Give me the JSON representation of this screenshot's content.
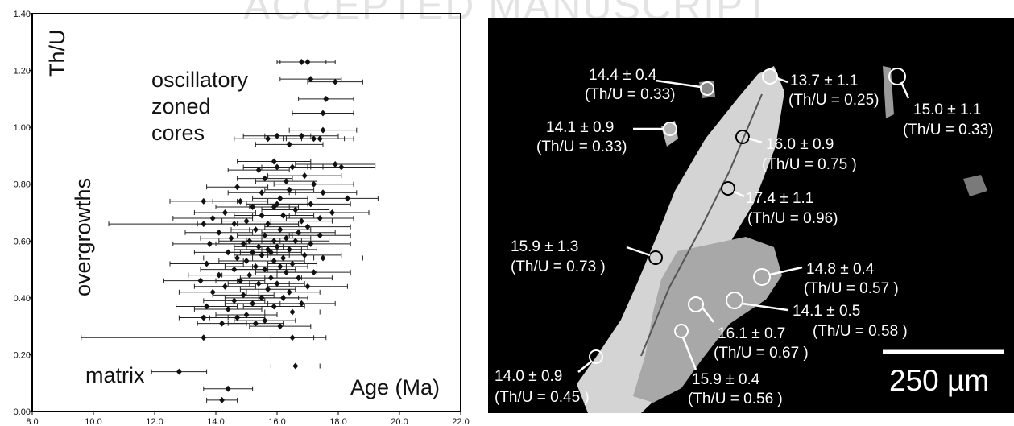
{
  "header": {
    "watermark": "ACCEPTED MANUSCRIPT"
  },
  "chart_data": {
    "type": "scatter",
    "title": "",
    "xlabel": "Age (Ma)",
    "ylabel": "Th/U",
    "xlim": [
      8.0,
      22.0
    ],
    "ylim": [
      0.0,
      1.4
    ],
    "xticks": [
      "8.0",
      "10.0",
      "12.0",
      "14.0",
      "16.0",
      "18.0",
      "20.0",
      "22.0"
    ],
    "yticks": [
      "0.00",
      "0.20",
      "0.40",
      "0.60",
      "0.80",
      "1.00",
      "1.20",
      "1.40"
    ],
    "grid": false,
    "annotations": [
      "oscillatory",
      "zoned",
      "cores",
      "overgrowths",
      "matrix"
    ],
    "points": [
      {
        "x": 16.8,
        "y": 1.23,
        "err": 0.8
      },
      {
        "x": 17.0,
        "y": 1.23,
        "err": 0.9
      },
      {
        "x": 17.1,
        "y": 1.17,
        "err": 1.0
      },
      {
        "x": 17.9,
        "y": 1.16,
        "err": 0.9
      },
      {
        "x": 17.6,
        "y": 1.1,
        "err": 0.9
      },
      {
        "x": 17.5,
        "y": 1.05,
        "err": 1.0
      },
      {
        "x": 17.5,
        "y": 0.99,
        "err": 1.1
      },
      {
        "x": 16.0,
        "y": 0.97,
        "err": 1.1
      },
      {
        "x": 16.8,
        "y": 0.97,
        "err": 1.2
      },
      {
        "x": 17.2,
        "y": 0.96,
        "err": 1.0
      },
      {
        "x": 15.7,
        "y": 0.96,
        "err": 1.1
      },
      {
        "x": 17.4,
        "y": 0.96,
        "err": 1.1
      },
      {
        "x": 16.4,
        "y": 0.94,
        "err": 1.1
      },
      {
        "x": 15.9,
        "y": 0.88,
        "err": 1.2
      },
      {
        "x": 17.9,
        "y": 0.87,
        "err": 1.3
      },
      {
        "x": 16.0,
        "y": 0.86,
        "err": 1.1
      },
      {
        "x": 16.5,
        "y": 0.86,
        "err": 1.0
      },
      {
        "x": 18.1,
        "y": 0.86,
        "err": 1.1
      },
      {
        "x": 15.4,
        "y": 0.85,
        "err": 1.0
      },
      {
        "x": 16.9,
        "y": 0.83,
        "err": 1.2
      },
      {
        "x": 15.6,
        "y": 0.82,
        "err": 0.9
      },
      {
        "x": 16.3,
        "y": 0.81,
        "err": 1.0
      },
      {
        "x": 17.2,
        "y": 0.8,
        "err": 1.3
      },
      {
        "x": 14.7,
        "y": 0.79,
        "err": 1.0
      },
      {
        "x": 16.4,
        "y": 0.78,
        "err": 0.8
      },
      {
        "x": 17.5,
        "y": 0.77,
        "err": 1.1
      },
      {
        "x": 15.5,
        "y": 0.77,
        "err": 1.1
      },
      {
        "x": 16.1,
        "y": 0.75,
        "err": 0.9
      },
      {
        "x": 18.3,
        "y": 0.75,
        "err": 1.0
      },
      {
        "x": 13.6,
        "y": 0.74,
        "err": 1.1
      },
      {
        "x": 14.8,
        "y": 0.74,
        "err": 0.9
      },
      {
        "x": 16.0,
        "y": 0.73,
        "err": 1.0
      },
      {
        "x": 17.1,
        "y": 0.73,
        "err": 1.3
      },
      {
        "x": 15.2,
        "y": 0.72,
        "err": 1.2
      },
      {
        "x": 15.9,
        "y": 0.72,
        "err": 0.8
      },
      {
        "x": 16.6,
        "y": 0.71,
        "err": 1.1
      },
      {
        "x": 14.3,
        "y": 0.7,
        "err": 1.0
      },
      {
        "x": 17.8,
        "y": 0.7,
        "err": 1.2
      },
      {
        "x": 15.5,
        "y": 0.69,
        "err": 0.9
      },
      {
        "x": 16.2,
        "y": 0.69,
        "err": 1.0
      },
      {
        "x": 13.9,
        "y": 0.68,
        "err": 1.3
      },
      {
        "x": 17.4,
        "y": 0.68,
        "err": 1.1
      },
      {
        "x": 15.0,
        "y": 0.67,
        "err": 0.8
      },
      {
        "x": 16.8,
        "y": 0.67,
        "err": 1.0
      },
      {
        "x": 14.6,
        "y": 0.66,
        "err": 1.2
      },
      {
        "x": 15.7,
        "y": 0.66,
        "err": 1.0
      },
      {
        "x": 13.6,
        "y": 0.66,
        "err": 3.1
      },
      {
        "x": 17.0,
        "y": 0.65,
        "err": 1.4
      },
      {
        "x": 15.3,
        "y": 0.64,
        "err": 0.8
      },
      {
        "x": 16.1,
        "y": 0.64,
        "err": 1.0
      },
      {
        "x": 14.1,
        "y": 0.63,
        "err": 1.1
      },
      {
        "x": 16.7,
        "y": 0.63,
        "err": 1.2
      },
      {
        "x": 15.6,
        "y": 0.62,
        "err": 0.9
      },
      {
        "x": 17.4,
        "y": 0.62,
        "err": 1.0
      },
      {
        "x": 14.5,
        "y": 0.61,
        "err": 1.0
      },
      {
        "x": 16.3,
        "y": 0.61,
        "err": 0.8
      },
      {
        "x": 15.1,
        "y": 0.6,
        "err": 1.0
      },
      {
        "x": 15.9,
        "y": 0.6,
        "err": 0.9
      },
      {
        "x": 16.6,
        "y": 0.6,
        "err": 1.1
      },
      {
        "x": 13.8,
        "y": 0.59,
        "err": 1.2
      },
      {
        "x": 14.9,
        "y": 0.59,
        "err": 0.9
      },
      {
        "x": 17.1,
        "y": 0.59,
        "err": 1.3
      },
      {
        "x": 15.4,
        "y": 0.58,
        "err": 0.8
      },
      {
        "x": 16.0,
        "y": 0.58,
        "err": 1.0
      },
      {
        "x": 15.7,
        "y": 0.57,
        "err": 1.1
      },
      {
        "x": 16.4,
        "y": 0.57,
        "err": 0.9
      },
      {
        "x": 14.4,
        "y": 0.56,
        "err": 1.1
      },
      {
        "x": 15.2,
        "y": 0.56,
        "err": 0.8
      },
      {
        "x": 15.8,
        "y": 0.56,
        "err": 1.0
      },
      {
        "x": 16.9,
        "y": 0.55,
        "err": 1.2
      },
      {
        "x": 15.5,
        "y": 0.55,
        "err": 0.9
      },
      {
        "x": 16.2,
        "y": 0.54,
        "err": 1.0
      },
      {
        "x": 14.7,
        "y": 0.54,
        "err": 1.1
      },
      {
        "x": 17.5,
        "y": 0.54,
        "err": 1.3
      },
      {
        "x": 15.0,
        "y": 0.53,
        "err": 0.9
      },
      {
        "x": 15.9,
        "y": 0.53,
        "err": 1.0
      },
      {
        "x": 16.5,
        "y": 0.52,
        "err": 0.8
      },
      {
        "x": 13.7,
        "y": 0.52,
        "err": 1.2
      },
      {
        "x": 15.3,
        "y": 0.51,
        "err": 1.0
      },
      {
        "x": 16.1,
        "y": 0.51,
        "err": 0.9
      },
      {
        "x": 14.6,
        "y": 0.5,
        "err": 1.1
      },
      {
        "x": 15.6,
        "y": 0.5,
        "err": 1.0
      },
      {
        "x": 17.2,
        "y": 0.49,
        "err": 1.2
      },
      {
        "x": 16.3,
        "y": 0.49,
        "err": 1.0
      },
      {
        "x": 14.1,
        "y": 0.48,
        "err": 1.0
      },
      {
        "x": 15.1,
        "y": 0.48,
        "err": 0.9
      },
      {
        "x": 15.8,
        "y": 0.47,
        "err": 1.0
      },
      {
        "x": 16.7,
        "y": 0.47,
        "err": 1.1
      },
      {
        "x": 13.5,
        "y": 0.46,
        "err": 1.2
      },
      {
        "x": 14.8,
        "y": 0.46,
        "err": 0.8
      },
      {
        "x": 15.4,
        "y": 0.45,
        "err": 1.0
      },
      {
        "x": 16.0,
        "y": 0.45,
        "err": 0.9
      },
      {
        "x": 17.0,
        "y": 0.44,
        "err": 1.3
      },
      {
        "x": 14.3,
        "y": 0.44,
        "err": 1.0
      },
      {
        "x": 15.7,
        "y": 0.43,
        "err": 0.9
      },
      {
        "x": 16.4,
        "y": 0.42,
        "err": 1.0
      },
      {
        "x": 13.9,
        "y": 0.42,
        "err": 1.1
      },
      {
        "x": 14.9,
        "y": 0.41,
        "err": 1.0
      },
      {
        "x": 15.5,
        "y": 0.4,
        "err": 1.2
      },
      {
        "x": 16.2,
        "y": 0.4,
        "err": 0.8
      },
      {
        "x": 14.6,
        "y": 0.39,
        "err": 1.0
      },
      {
        "x": 16.8,
        "y": 0.38,
        "err": 1.1
      },
      {
        "x": 15.2,
        "y": 0.38,
        "err": 0.9
      },
      {
        "x": 13.7,
        "y": 0.37,
        "err": 1.0
      },
      {
        "x": 15.9,
        "y": 0.37,
        "err": 1.0
      },
      {
        "x": 14.4,
        "y": 0.36,
        "err": 1.1
      },
      {
        "x": 16.5,
        "y": 0.35,
        "err": 0.9
      },
      {
        "x": 15.0,
        "y": 0.34,
        "err": 1.0
      },
      {
        "x": 13.6,
        "y": 0.33,
        "err": 0.8
      },
      {
        "x": 14.7,
        "y": 0.33,
        "err": 0.9
      },
      {
        "x": 15.6,
        "y": 0.32,
        "err": 1.0
      },
      {
        "x": 14.2,
        "y": 0.31,
        "err": 0.8
      },
      {
        "x": 15.3,
        "y": 0.31,
        "err": 0.9
      },
      {
        "x": 16.1,
        "y": 0.3,
        "err": 1.0
      },
      {
        "x": 13.6,
        "y": 0.26,
        "err": 4.0
      },
      {
        "x": 16.5,
        "y": 0.26,
        "err": 0.7
      },
      {
        "x": 16.6,
        "y": 0.16,
        "err": 0.8
      },
      {
        "x": 12.8,
        "y": 0.14,
        "err": 0.9
      },
      {
        "x": 14.4,
        "y": 0.08,
        "err": 0.8
      },
      {
        "x": 14.2,
        "y": 0.04,
        "err": 0.5
      }
    ]
  },
  "micrograph": {
    "scale_label": "250 µm",
    "spots": [
      {
        "age": "14.4 ± 0.4",
        "ratio": "(Th/U = 0.33)"
      },
      {
        "age": "13.7 ± 1.1",
        "ratio": "(Th/U = 0.25)"
      },
      {
        "age": "15.0 ± 1.1",
        "ratio": "(Th/U = 0.33)"
      },
      {
        "age": "14.1 ± 0.9",
        "ratio": "(Th/U = 0.33)"
      },
      {
        "age": "16.0 ± 0.9",
        "ratio": "(Th/U = 0.75 )"
      },
      {
        "age": "17.4 ± 1.1",
        "ratio": "(Th/U = 0.96)"
      },
      {
        "age": "15.9 ± 1.3",
        "ratio": "(Th/U = 0.73 )"
      },
      {
        "age": "14.8 ± 0.4",
        "ratio": "(Th/U = 0.57 )"
      },
      {
        "age": "14.1 ± 0.5",
        "ratio": "(Th/U = 0.58 )"
      },
      {
        "age": "16.1 ± 0.7",
        "ratio": "(Th/U = 0.67 )"
      },
      {
        "age": "14.0 ± 0.9",
        "ratio": "(Th/U = 0.45 )"
      },
      {
        "age": "15.9 ± 0.4",
        "ratio": "(Th/U = 0.56 )"
      }
    ]
  }
}
